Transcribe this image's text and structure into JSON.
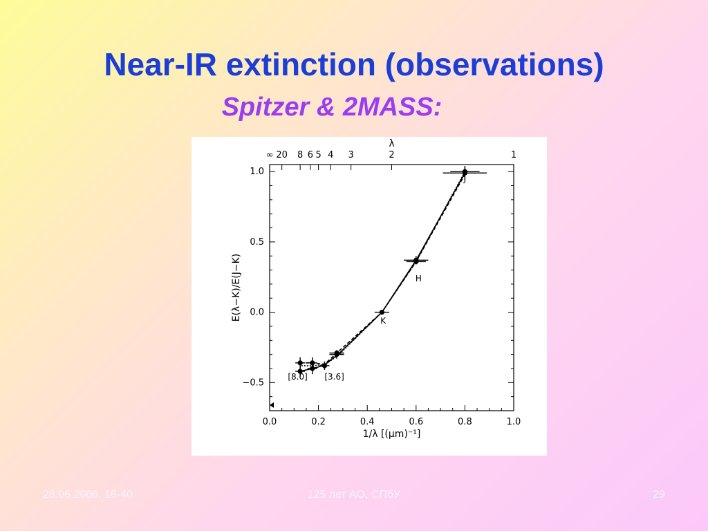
{
  "slide": {
    "title": "Near-IR extinction (observations)",
    "subtitle": "Spitzer & 2MASS:",
    "footer_left": "28.06.2006. 16-40",
    "footer_center": "125 лет АО, СПбУ",
    "footer_right": "29"
  },
  "chart_data": {
    "type": "line",
    "xlabel": "1/λ [(μm)⁻¹]",
    "ylabel": "E(λ−K)/E(J−K)",
    "top_axis_label": "λ",
    "xlim": [
      0.0,
      1.0
    ],
    "ylim": [
      -0.7,
      1.05
    ],
    "x_ticks": [
      "0.0",
      "0.2",
      "0.4",
      "0.6",
      "0.8",
      "1.0"
    ],
    "y_ticks": [
      "−0.5",
      "0.0",
      "0.5",
      "1.0"
    ],
    "top_ticks": [
      {
        "label": "∞",
        "x": 0.0
      },
      {
        "label": "20",
        "x": 0.05
      },
      {
        "label": "8",
        "x": 0.125
      },
      {
        "label": "6",
        "x": 0.1667
      },
      {
        "label": "5",
        "x": 0.2
      },
      {
        "label": "4",
        "x": 0.25
      },
      {
        "label": "3",
        "x": 0.3333
      },
      {
        "label": "2",
        "x": 0.5
      },
      {
        "label": "1",
        "x": 1.0
      }
    ],
    "series": [
      {
        "values_x": [
          0.125,
          0.175,
          0.22,
          0.28,
          0.46,
          0.6,
          0.8
        ],
        "values_y": [
          -0.42,
          -0.4,
          -0.38,
          -0.3,
          0.0,
          0.37,
          0.99
        ]
      },
      {
        "values_x": [
          0.125,
          0.175,
          0.225,
          0.275,
          0.46,
          0.6,
          0.8
        ],
        "values_y": [
          -0.36,
          -0.36,
          -0.37,
          -0.29,
          0.0,
          0.36,
          0.98
        ]
      },
      {
        "values_x": [
          0.13,
          0.18,
          0.23,
          0.285,
          0.46,
          0.6,
          0.8
        ],
        "values_y": [
          -0.38,
          -0.38,
          -0.37,
          -0.3,
          0.0,
          0.36,
          1.0
        ]
      }
    ],
    "points": [
      {
        "x": 0.125,
        "y": -0.42,
        "xerr": 0.02,
        "yerr": 0.04
      },
      {
        "x": 0.125,
        "y": -0.36,
        "xerr": 0.02,
        "yerr": 0.04
      },
      {
        "x": 0.175,
        "y": -0.4,
        "xerr": 0.02,
        "yerr": 0.04
      },
      {
        "x": 0.175,
        "y": -0.36,
        "xerr": 0.02,
        "yerr": 0.04
      },
      {
        "x": 0.225,
        "y": -0.38,
        "xerr": 0.02,
        "yerr": 0.03
      },
      {
        "x": 0.275,
        "y": -0.3,
        "xerr": 0.03,
        "yerr": 0.03
      },
      {
        "x": 0.275,
        "y": -0.29,
        "xerr": 0.03,
        "yerr": 0.02
      },
      {
        "x": 0.46,
        "y": 0.0,
        "xerr": 0.03,
        "yerr": 0.0
      },
      {
        "x": 0.6,
        "y": 0.37,
        "xerr": 0.05,
        "yerr": 0.03
      },
      {
        "x": 0.6,
        "y": 0.36,
        "xerr": 0.04,
        "yerr": 0.02
      },
      {
        "x": 0.8,
        "y": 0.99,
        "xerr": 0.09,
        "yerr": 0.05
      },
      {
        "x": 0.8,
        "y": 1.0,
        "xerr": 0.06,
        "yerr": 0.03
      }
    ],
    "annotations": [
      {
        "text": "J",
        "x": 0.8,
        "y": 0.93
      },
      {
        "text": "H",
        "x": 0.61,
        "y": 0.22
      },
      {
        "text": "K",
        "x": 0.465,
        "y": -0.08
      },
      {
        "text": "[8.0]",
        "x": 0.115,
        "y": -0.48
      },
      {
        "text": "[3.6]",
        "x": 0.265,
        "y": -0.48
      }
    ],
    "grid": false
  }
}
